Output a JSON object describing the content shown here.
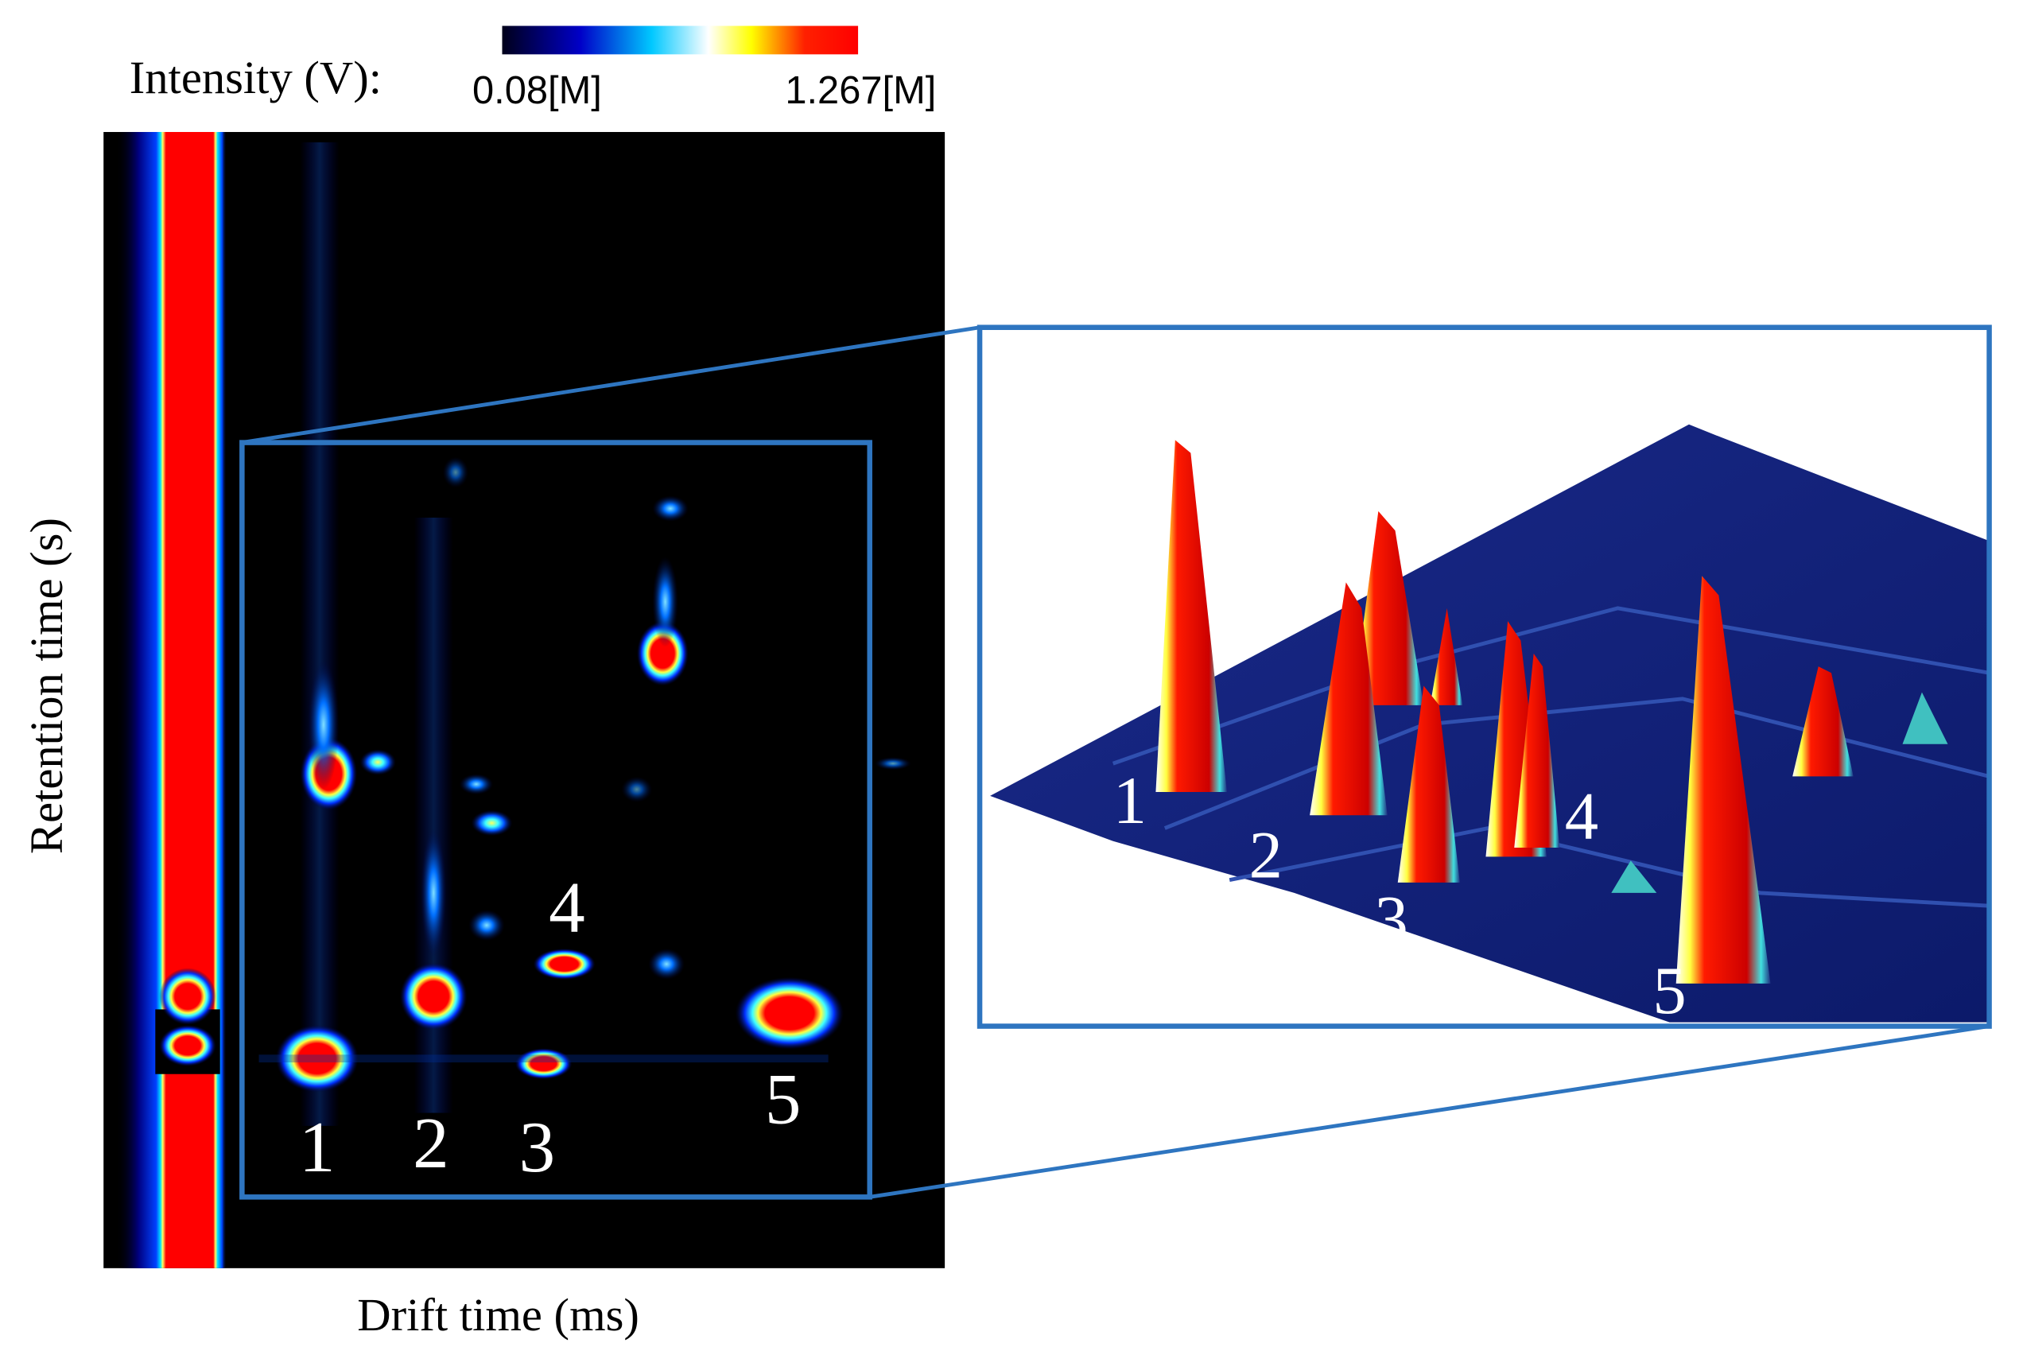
{
  "colorbar": {
    "label": "Intensity (V):",
    "min_label": "0.08[M]",
    "max_label": "1.267[M]"
  },
  "heatmap": {
    "x_label": "Drift time (ms)",
    "y_label": "Retention time (s)"
  },
  "peaks": [
    "1",
    "2",
    "3",
    "4",
    "5"
  ]
}
